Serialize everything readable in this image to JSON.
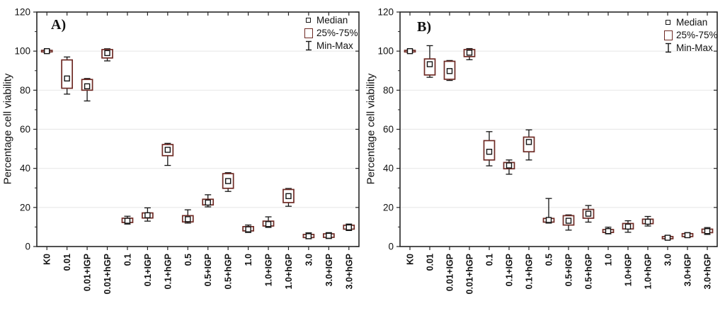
{
  "colors": {
    "iqr_box": "#6e2a24",
    "whisker": "#141414",
    "median_marker": "#141414",
    "grid": "#e9e9e9",
    "frame": "#262626",
    "background": "#ffffff",
    "text": "#111111"
  },
  "chart_data": [
    {
      "type": "box",
      "panel_label": "A)",
      "ylabel": "Percentage cell viability",
      "ylim": [
        0,
        120
      ],
      "yticks": [
        0,
        20,
        40,
        60,
        80,
        100,
        120
      ],
      "grid": "horizontal",
      "legend": {
        "position": "top-right",
        "items": [
          {
            "symbol": "median-square",
            "label": "Median"
          },
          {
            "symbol": "iqr-box",
            "label": "25%-75%"
          },
          {
            "symbol": "min-max-whisker",
            "label": "Min-Max"
          }
        ]
      },
      "categories": [
        "K0",
        "0.01",
        "0.01+IGP",
        "0.01+hGP",
        "0.1",
        "0.1+IGP",
        "0.1+hGP",
        "0.5",
        "0.5+IGP",
        "0.5+hGP",
        "1.0",
        "1.0+IGP",
        "1.0+hGP",
        "3.0",
        "3.0+IGP",
        "3.0+hGP"
      ],
      "boxes": [
        {
          "median": 100,
          "q1": 99.6,
          "q3": 100.4,
          "min": 99.1,
          "max": 100.8
        },
        {
          "median": 86,
          "q1": 81,
          "q3": 95.5,
          "min": 78,
          "max": 97
        },
        {
          "median": 82,
          "q1": 80,
          "q3": 85.5,
          "min": 74.5,
          "max": 86
        },
        {
          "median": 99,
          "q1": 96.5,
          "q3": 100.8,
          "min": 95,
          "max": 101.2
        },
        {
          "median": 13.2,
          "q1": 12.3,
          "q3": 14.5,
          "min": 11.5,
          "max": 15.5
        },
        {
          "median": 16,
          "q1": 14.6,
          "q3": 17.2,
          "min": 13,
          "max": 19.8
        },
        {
          "median": 49.5,
          "q1": 46.5,
          "q3": 52.2,
          "min": 41.5,
          "max": 52.8
        },
        {
          "median": 14,
          "q1": 12.6,
          "q3": 15.8,
          "min": 12,
          "max": 18.8
        },
        {
          "median": 22.5,
          "q1": 21.3,
          "q3": 24.2,
          "min": 20.3,
          "max": 26.5
        },
        {
          "median": 33.5,
          "q1": 29.8,
          "q3": 37.3,
          "min": 28.2,
          "max": 37.8
        },
        {
          "median": 8.8,
          "q1": 8,
          "q3": 10.2,
          "min": 7.2,
          "max": 11
        },
        {
          "median": 11.5,
          "q1": 10.5,
          "q3": 13,
          "min": 9.8,
          "max": 15.2
        },
        {
          "median": 25.8,
          "q1": 22.5,
          "q3": 29.2,
          "min": 20.6,
          "max": 29.7
        },
        {
          "median": 5.3,
          "q1": 4.6,
          "q3": 6.2,
          "min": 4,
          "max": 7
        },
        {
          "median": 5.5,
          "q1": 4.7,
          "q3": 6.5,
          "min": 4.1,
          "max": 7.1
        },
        {
          "median": 9.8,
          "q1": 8.9,
          "q3": 10.9,
          "min": 8.2,
          "max": 11.5
        }
      ]
    },
    {
      "type": "box",
      "panel_label": "B)",
      "ylabel": "Percentage cell viability",
      "ylim": [
        0,
        120
      ],
      "yticks": [
        0,
        20,
        40,
        60,
        80,
        100,
        120
      ],
      "grid": "horizontal",
      "legend": {
        "position": "top-right",
        "items": [
          {
            "symbol": "median-square",
            "label": "Median"
          },
          {
            "symbol": "iqr-box",
            "label": "25%-75%"
          },
          {
            "symbol": "min-max-whisker",
            "label": "Min-Max"
          }
        ]
      },
      "categories": [
        "K0",
        "0.01",
        "0.01+IGP",
        "0.01+hGP",
        "0.1",
        "0.1+IGP",
        "0.1+hGP",
        "0.5",
        "0.5+IGP",
        "0.5+hGP",
        "1.0",
        "1.0+IGP",
        "1.0+hGP",
        "3.0",
        "3.0+IGP",
        "3.0+hGP"
      ],
      "boxes": [
        {
          "median": 100,
          "q1": 99.6,
          "q3": 100.4,
          "min": 99.2,
          "max": 100.7
        },
        {
          "median": 93.3,
          "q1": 87.8,
          "q3": 96,
          "min": 86.6,
          "max": 102.8
        },
        {
          "median": 89.8,
          "q1": 85.6,
          "q3": 94.8,
          "min": 85,
          "max": 95.2
        },
        {
          "median": 99.2,
          "q1": 97.2,
          "q3": 100.8,
          "min": 95.6,
          "max": 101.3
        },
        {
          "median": 48.5,
          "q1": 44.3,
          "q3": 54.2,
          "min": 41.3,
          "max": 58.8
        },
        {
          "median": 41.5,
          "q1": 39.8,
          "q3": 43,
          "min": 37,
          "max": 44.3
        },
        {
          "median": 53.5,
          "q1": 48.5,
          "q3": 56,
          "min": 44.3,
          "max": 59.7
        },
        {
          "median": 13.6,
          "q1": 12.5,
          "q3": 14.4,
          "min": 12,
          "max": 24.6
        },
        {
          "median": 13.2,
          "q1": 11,
          "q3": 15.8,
          "min": 8.4,
          "max": 16.2
        },
        {
          "median": 16.8,
          "q1": 14.5,
          "q3": 19,
          "min": 12.5,
          "max": 21
        },
        {
          "median": 7.9,
          "q1": 7.2,
          "q3": 8.7,
          "min": 6.5,
          "max": 9.9
        },
        {
          "median": 10.2,
          "q1": 9,
          "q3": 11.8,
          "min": 7.3,
          "max": 13.2
        },
        {
          "median": 12.7,
          "q1": 11.7,
          "q3": 14,
          "min": 10.5,
          "max": 15.4
        },
        {
          "median": 4.5,
          "q1": 4,
          "q3": 5.1,
          "min": 3.6,
          "max": 5.6
        },
        {
          "median": 5.8,
          "q1": 5.1,
          "q3": 6.6,
          "min": 4.6,
          "max": 7.1
        },
        {
          "median": 7.9,
          "q1": 7.1,
          "q3": 8.9,
          "min": 6.2,
          "max": 9.7
        }
      ]
    }
  ]
}
